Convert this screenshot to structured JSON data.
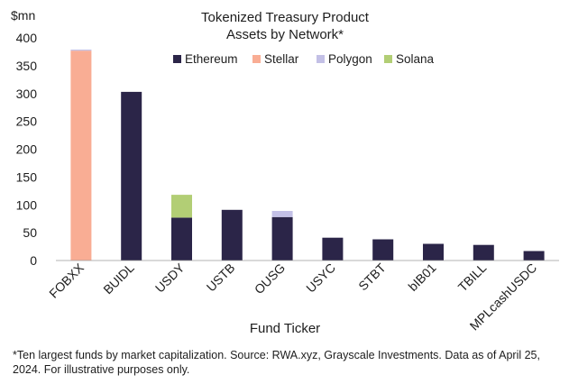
{
  "chart_data": {
    "type": "bar",
    "stacked": true,
    "title_lines": [
      "Tokenized Treasury Product",
      "Assets by Network*"
    ],
    "y_unit_label": "$mn",
    "xlabel": "Fund Ticker",
    "ylim": [
      0,
      400
    ],
    "yticks": [
      0,
      50,
      100,
      150,
      200,
      250,
      300,
      350,
      400
    ],
    "grid": false,
    "legend_placement": "top-center",
    "categories": [
      "FOBXX",
      "BUIDL",
      "USDY",
      "USTB",
      "OUSG",
      "USYC",
      "STBT",
      "bIB01",
      "TBILL",
      "MPLcashUSDC"
    ],
    "series": [
      {
        "name": "Ethereum",
        "color": "#2b2548",
        "values": [
          0,
          303,
          77,
          91,
          78,
          41,
          38,
          30,
          28,
          17
        ]
      },
      {
        "name": "Stellar",
        "color": "#f9ad94",
        "values": [
          377,
          0,
          0,
          0,
          0,
          0,
          0,
          0,
          0,
          0
        ]
      },
      {
        "name": "Polygon",
        "color": "#c3c0e6",
        "values": [
          2,
          0,
          0,
          0,
          11,
          0,
          0,
          0,
          0,
          0
        ]
      },
      {
        "name": "Solana",
        "color": "#b2ce75",
        "values": [
          0,
          0,
          41,
          0,
          0,
          0,
          0,
          0,
          0,
          0
        ]
      }
    ]
  },
  "footnote": "*Ten largest funds by market capitalization. Source: RWA.xyz, Grayscale Investments. Data as of April 25, 2024. For illustrative purposes only."
}
